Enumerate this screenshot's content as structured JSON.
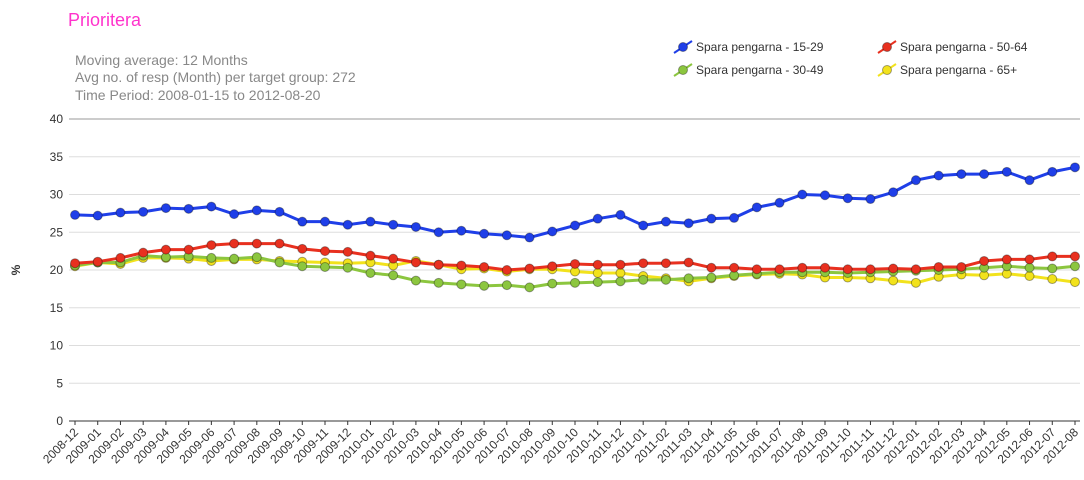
{
  "chart_data": {
    "type": "line",
    "title": "Prioritera",
    "subtitle": [
      "Moving average: 12 Months",
      "Avg no. of resp (Month) per target group: 272",
      "Time Period: 2008-01-15 to 2012-08-20"
    ],
    "y_label": "%",
    "categories": [
      "2008-12",
      "2009-01",
      "2009-02",
      "2009-03",
      "2009-04",
      "2009-05",
      "2009-06",
      "2009-07",
      "2009-08",
      "2009-09",
      "2009-10",
      "2009-11",
      "2009-12",
      "2010-01",
      "2010-02",
      "2010-03",
      "2010-04",
      "2010-05",
      "2010-06",
      "2010-07",
      "2010-08",
      "2010-09",
      "2010-10",
      "2010-11",
      "2010-12",
      "2011-01",
      "2011-02",
      "2011-03",
      "2011-04",
      "2011-05",
      "2011-06",
      "2011-07",
      "2011-08",
      "2011-09",
      "2011-10",
      "2011-11",
      "2011-12",
      "2012-01",
      "2012-02",
      "2012-03",
      "2012-04",
      "2012-05",
      "2012-06",
      "2012-07",
      "2012-08"
    ],
    "series": [
      {
        "name": "Spara pengarna - 15-29",
        "color": "#1f3fe8",
        "values": [
          27.3,
          27.2,
          27.6,
          27.7,
          28.2,
          28.1,
          28.4,
          27.4,
          27.9,
          27.7,
          26.4,
          26.4,
          26.0,
          26.4,
          26.0,
          25.7,
          25.0,
          25.2,
          24.8,
          24.6,
          24.3,
          25.1,
          25.9,
          26.8,
          27.3,
          25.9,
          26.4,
          26.2,
          26.8,
          26.9,
          28.3,
          28.9,
          30.0,
          29.9,
          29.5,
          29.4,
          30.3,
          31.9,
          32.5,
          32.7,
          32.7,
          33.0,
          31.9,
          33.0,
          33.6
        ]
      },
      {
        "name": "Spara pengarna - 50-64",
        "color": "#e8301f",
        "values": [
          20.9,
          21.1,
          21.6,
          22.3,
          22.7,
          22.7,
          23.3,
          23.5,
          23.5,
          23.5,
          22.8,
          22.5,
          22.4,
          21.9,
          21.5,
          21.0,
          20.7,
          20.6,
          20.4,
          20.0,
          20.2,
          20.5,
          20.8,
          20.7,
          20.7,
          20.9,
          20.9,
          21.0,
          20.3,
          20.3,
          20.1,
          20.1,
          20.3,
          20.3,
          20.1,
          20.1,
          20.2,
          20.1,
          20.4,
          20.4,
          21.2,
          21.4,
          21.4,
          21.8,
          21.8
        ]
      },
      {
        "name": "Spara pengarna - 30-49",
        "color": "#8cc63f",
        "values": [
          20.6,
          21.0,
          21.0,
          21.9,
          21.7,
          21.8,
          21.6,
          21.5,
          21.7,
          21.0,
          20.5,
          20.4,
          20.3,
          19.6,
          19.3,
          18.6,
          18.3,
          18.1,
          17.9,
          18.0,
          17.7,
          18.2,
          18.3,
          18.4,
          18.5,
          18.7,
          18.7,
          18.9,
          19.0,
          19.3,
          19.5,
          19.7,
          19.7,
          19.7,
          19.6,
          19.7,
          19.8,
          19.9,
          20.0,
          20.1,
          20.3,
          20.5,
          20.3,
          20.2,
          20.5
        ]
      },
      {
        "name": "Spara pengarna - 65+",
        "color": "#f2e21c",
        "values": [
          20.5,
          21.0,
          20.8,
          21.6,
          21.6,
          21.5,
          21.2,
          21.4,
          21.4,
          21.2,
          21.1,
          21.0,
          20.9,
          21.0,
          20.6,
          21.2,
          20.7,
          20.1,
          20.2,
          19.8,
          20.1,
          20.1,
          19.8,
          19.6,
          19.6,
          19.2,
          18.9,
          18.5,
          18.9,
          19.2,
          19.4,
          19.5,
          19.4,
          19.0,
          19.0,
          18.9,
          18.6,
          18.3,
          19.1,
          19.4,
          19.3,
          19.5,
          19.2,
          18.8,
          18.4
        ]
      }
    ],
    "ylim": [
      0,
      40
    ],
    "yticks": [
      0,
      5,
      10,
      15,
      20,
      25,
      30,
      35,
      40
    ],
    "grid": true,
    "legend": "top-right"
  }
}
